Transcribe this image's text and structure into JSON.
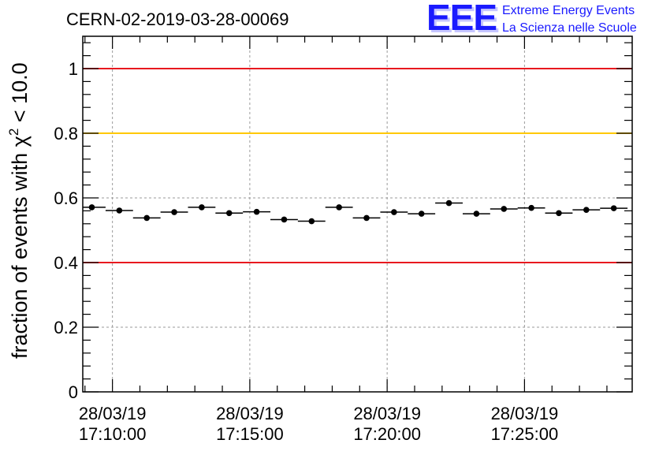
{
  "title": "CERN-02-2019-03-28-00069",
  "branding": {
    "logo": "EEE",
    "line1": "Extreme Energy Events",
    "line2": "La Scienza nelle Scuole",
    "color": "#1a1aff"
  },
  "chart_data": {
    "type": "scatter",
    "title": "CERN-02-2019-03-28-00069",
    "ylabel_prefix": "fraction of events with ",
    "ylabel_symbol": "χ",
    "ylabel_superscript": "2",
    "ylabel_suffix": " < 10.0",
    "xlabel": "",
    "ylim": [
      0,
      1.1
    ],
    "y_ticks": [
      0,
      0.2,
      0.4,
      0.6,
      0.8,
      1
    ],
    "y_tick_labels": [
      "0",
      "0.2",
      "0.4",
      "0.6",
      "0.8",
      "1"
    ],
    "x_range_minutes": [
      -1.08,
      18.92
    ],
    "x_major_ticks_minutes": [
      0,
      5,
      10,
      15
    ],
    "x_tick_labels": [
      [
        "28/03/19",
        "17:10:00"
      ],
      [
        "28/03/19",
        "17:15:00"
      ],
      [
        "28/03/19",
        "17:20:00"
      ],
      [
        "28/03/19",
        "17:25:00"
      ]
    ],
    "x_minor_step_minutes": 1,
    "grid": true,
    "bin_width_minutes": 1,
    "points_minutes": [
      -0.75,
      0.25,
      1.25,
      2.25,
      3.25,
      4.25,
      5.25,
      6.25,
      7.25,
      8.25,
      9.25,
      10.25,
      11.25,
      12.25,
      13.25,
      14.25,
      15.25,
      16.25,
      17.25,
      18.25
    ],
    "values": [
      0.571,
      0.561,
      0.538,
      0.556,
      0.571,
      0.553,
      0.557,
      0.533,
      0.528,
      0.571,
      0.538,
      0.556,
      0.551,
      0.584,
      0.551,
      0.566,
      0.569,
      0.553,
      0.563,
      0.568
    ],
    "errors": [
      0.006,
      0.006,
      0.006,
      0.006,
      0.006,
      0.006,
      0.006,
      0.006,
      0.006,
      0.006,
      0.006,
      0.006,
      0.006,
      0.006,
      0.006,
      0.006,
      0.006,
      0.006,
      0.006,
      0.006
    ],
    "reference_lines": [
      {
        "y": 1.0,
        "color": "#e8191f",
        "name": "upper-limit-line"
      },
      {
        "y": 0.8,
        "color": "#ffc800",
        "name": "warning-line"
      },
      {
        "y": 0.4,
        "color": "#e8191f",
        "name": "lower-limit-line"
      }
    ]
  }
}
